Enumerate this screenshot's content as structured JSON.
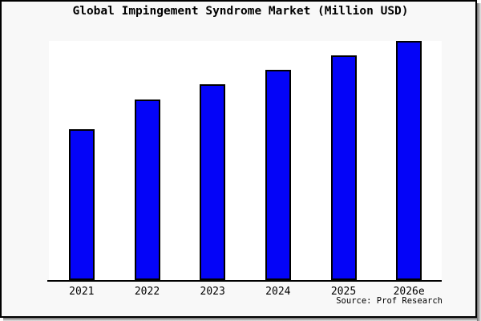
{
  "chart_data": {
    "type": "bar",
    "title": "Global Impingement Syndrome Market (Million USD)",
    "categories": [
      "2021",
      "2022",
      "2023",
      "2024",
      "2025",
      "2026e"
    ],
    "values": [
      63,
      75.5,
      82,
      88,
      94,
      100
    ],
    "value_scale_note": "no y-axis or data labels shown; values are relative bar heights with 2026e = 100",
    "xlabel": "",
    "ylabel": "",
    "ylim": [
      0,
      100
    ],
    "grid": false,
    "legend": false,
    "bar_color": "#0404f8",
    "bar_border_color": "#000000"
  },
  "source": {
    "label": "Source: Prof Research"
  },
  "colors": {
    "background": "#f8f8f8",
    "plot_background": "#ffffff",
    "frame_border": "#000000",
    "text": "#000000"
  }
}
